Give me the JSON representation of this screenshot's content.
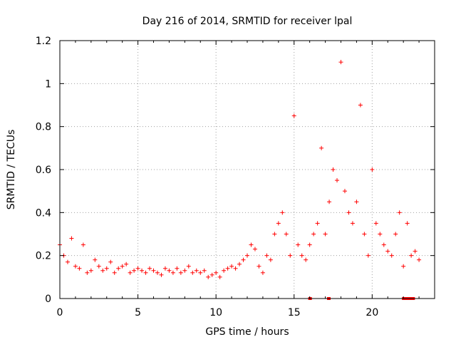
{
  "chart_data": {
    "type": "scatter",
    "title": "Day 216 of 2014, SRMTID for receiver lpal",
    "xlabel": "GPS time / hours",
    "ylabel": "SRMTID / TECUs",
    "xlim": [
      0,
      24
    ],
    "ylim": [
      0,
      1.2
    ],
    "x_ticks": [
      "0",
      "5",
      "10",
      "15",
      "20"
    ],
    "y_ticks": [
      "0",
      "0.2",
      "0.4",
      "0.6",
      "0.8",
      "1",
      "1.2"
    ],
    "grid": true,
    "marker": "plus",
    "color": "#ff0000",
    "series": [
      {
        "name": "SRMTID",
        "x": [
          0.0,
          0.25,
          0.5,
          0.75,
          1.0,
          1.25,
          1.5,
          1.75,
          2.0,
          2.25,
          2.5,
          2.75,
          3.0,
          3.25,
          3.5,
          3.75,
          4.0,
          4.25,
          4.5,
          4.75,
          5.0,
          5.25,
          5.5,
          5.75,
          6.0,
          6.25,
          6.5,
          6.75,
          7.0,
          7.25,
          7.5,
          7.75,
          8.0,
          8.25,
          8.5,
          8.75,
          9.0,
          9.25,
          9.5,
          9.75,
          10.0,
          10.25,
          10.5,
          10.75,
          11.0,
          11.25,
          11.5,
          11.75,
          12.0,
          12.25,
          12.5,
          12.75,
          13.0,
          13.25,
          13.5,
          13.75,
          14.0,
          14.25,
          14.5,
          14.75,
          15.0,
          15.25,
          15.5,
          15.75,
          16.0,
          16.25,
          16.5,
          16.75,
          17.0,
          17.25,
          17.5,
          17.75,
          18.0,
          18.25,
          18.5,
          18.75,
          19.0,
          19.25,
          19.5,
          19.75,
          20.0,
          20.25,
          20.5,
          20.75,
          21.0,
          21.25,
          21.5,
          21.75,
          22.0,
          22.25,
          22.5,
          22.75,
          23.0
        ],
        "y": [
          0.25,
          0.2,
          0.17,
          0.28,
          0.15,
          0.14,
          0.25,
          0.12,
          0.13,
          0.18,
          0.15,
          0.13,
          0.14,
          0.17,
          0.12,
          0.14,
          0.15,
          0.16,
          0.12,
          0.13,
          0.14,
          0.13,
          0.12,
          0.14,
          0.13,
          0.12,
          0.11,
          0.14,
          0.13,
          0.12,
          0.14,
          0.12,
          0.13,
          0.15,
          0.12,
          0.13,
          0.12,
          0.13,
          0.1,
          0.11,
          0.12,
          0.1,
          0.13,
          0.14,
          0.15,
          0.14,
          0.16,
          0.18,
          0.2,
          0.25,
          0.23,
          0.15,
          0.12,
          0.2,
          0.18,
          0.3,
          0.35,
          0.4,
          0.3,
          0.2,
          0.85,
          0.25,
          0.2,
          0.18,
          0.25,
          0.3,
          0.35,
          0.7,
          0.3,
          0.45,
          0.6,
          0.55,
          1.1,
          0.5,
          0.4,
          0.35,
          0.45,
          0.9,
          0.3,
          0.2,
          0.6,
          0.35,
          0.3,
          0.25,
          0.22,
          0.2,
          0.3,
          0.4,
          0.15,
          0.35,
          0.2,
          0.22,
          0.18
        ]
      }
    ],
    "low_markers": [
      16.0,
      17.2,
      22.0,
      22.2,
      22.4,
      22.6
    ]
  }
}
